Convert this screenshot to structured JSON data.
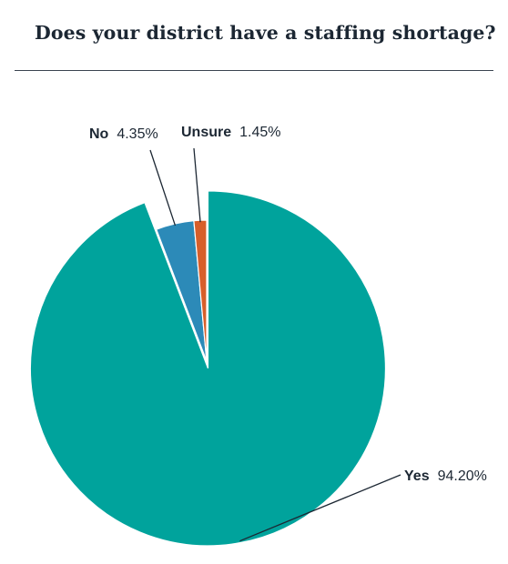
{
  "chart_data": {
    "type": "pie",
    "title": "Does your district have a staffing shortage?",
    "slices": [
      {
        "name": "Yes",
        "value": 94.2,
        "display": "94.20%",
        "color": "#00a39c"
      },
      {
        "name": "No",
        "value": 4.35,
        "display": "4.35%",
        "color": "#2c8ab8"
      },
      {
        "name": "Unsure",
        "value": 1.45,
        "display": "1.45%",
        "color": "#d75f2a"
      }
    ]
  }
}
